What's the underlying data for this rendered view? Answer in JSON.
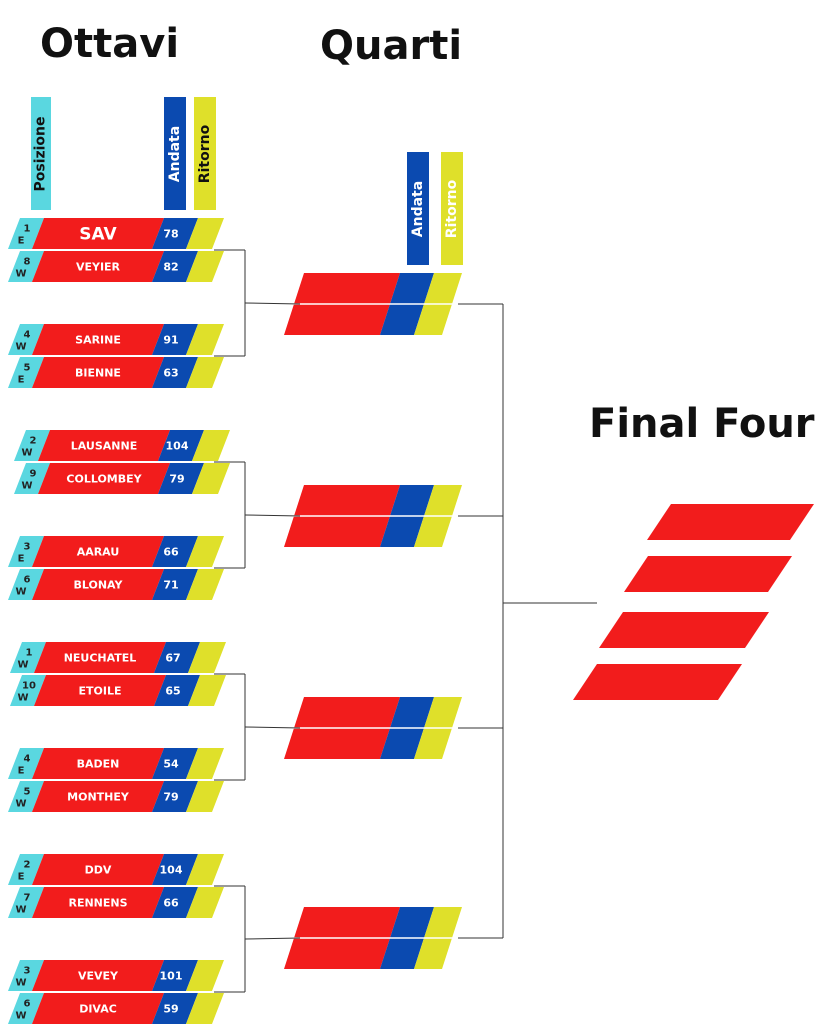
{
  "headings": {
    "ottavi": "Ottavi",
    "quarti": "Quarti",
    "final_four": "Final Four"
  },
  "column_labels": {
    "posizione": "Posizione",
    "andata": "Andata",
    "ritorno": "Ritorno"
  },
  "colors": {
    "team_red": "#f21c1c",
    "score_blue": "#0b4ab0",
    "ritorno_yellow": "#dfe02a",
    "seed_cyan": "#5ad7e0",
    "line": "#333333"
  },
  "ottavi": [
    {
      "teams": [
        {
          "rank": "1",
          "group": "E",
          "name": "SAV",
          "andata": "78",
          "highlight": true
        },
        {
          "rank": "8",
          "group": "W",
          "name": "VEYIER",
          "andata": "82"
        }
      ]
    },
    {
      "teams": [
        {
          "rank": "4",
          "group": "W",
          "name": "SARINE",
          "andata": "91"
        },
        {
          "rank": "5",
          "group": "E",
          "name": "BIENNE",
          "andata": "63"
        }
      ]
    },
    {
      "teams": [
        {
          "rank": "2",
          "group": "W",
          "name": "LAUSANNE",
          "andata": "104"
        },
        {
          "rank": "9",
          "group": "W",
          "name": "COLLOMBEY",
          "andata": "79"
        }
      ]
    },
    {
      "teams": [
        {
          "rank": "3",
          "group": "E",
          "name": "AARAU",
          "andata": "66"
        },
        {
          "rank": "6",
          "group": "W",
          "name": "BLONAY",
          "andata": "71"
        }
      ]
    },
    {
      "teams": [
        {
          "rank": "1",
          "group": "W",
          "name": "NEUCHATEL",
          "andata": "67"
        },
        {
          "rank": "10",
          "group": "W",
          "name": "ETOILE",
          "andata": "65"
        }
      ]
    },
    {
      "teams": [
        {
          "rank": "4",
          "group": "E",
          "name": "BADEN",
          "andata": "54"
        },
        {
          "rank": "5",
          "group": "W",
          "name": "MONTHEY",
          "andata": "79"
        }
      ]
    },
    {
      "teams": [
        {
          "rank": "2",
          "group": "E",
          "name": "DDV",
          "andata": "104"
        },
        {
          "rank": "7",
          "group": "W",
          "name": "RENNENS",
          "andata": "66"
        }
      ]
    },
    {
      "teams": [
        {
          "rank": "3",
          "group": "W",
          "name": "VEVEY",
          "andata": "101"
        },
        {
          "rank": "6",
          "group": "W",
          "name": "DIVAC",
          "andata": "59"
        }
      ]
    }
  ],
  "quarti_count": 4,
  "final_four_count": 4
}
